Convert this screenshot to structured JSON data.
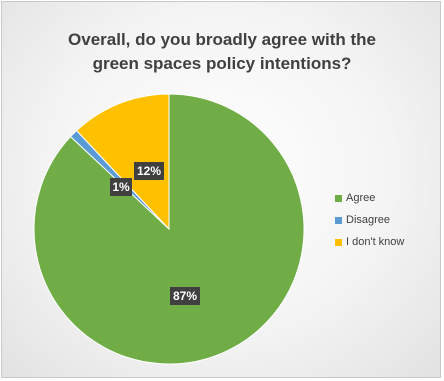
{
  "chart_data": {
    "type": "pie",
    "title": "Overall, do you broadly agree with the\ngreen spaces policy intentions?",
    "categories": [
      "Agree",
      "Disagree",
      "I don't know"
    ],
    "values": [
      87,
      1,
      12
    ],
    "labels": [
      "87%",
      "1%",
      "12%"
    ],
    "colors": [
      "#70ad47",
      "#5b9bd5",
      "#ffc000"
    ],
    "legend_position": "right",
    "start_angle_deg": 0,
    "direction": "clockwise"
  }
}
